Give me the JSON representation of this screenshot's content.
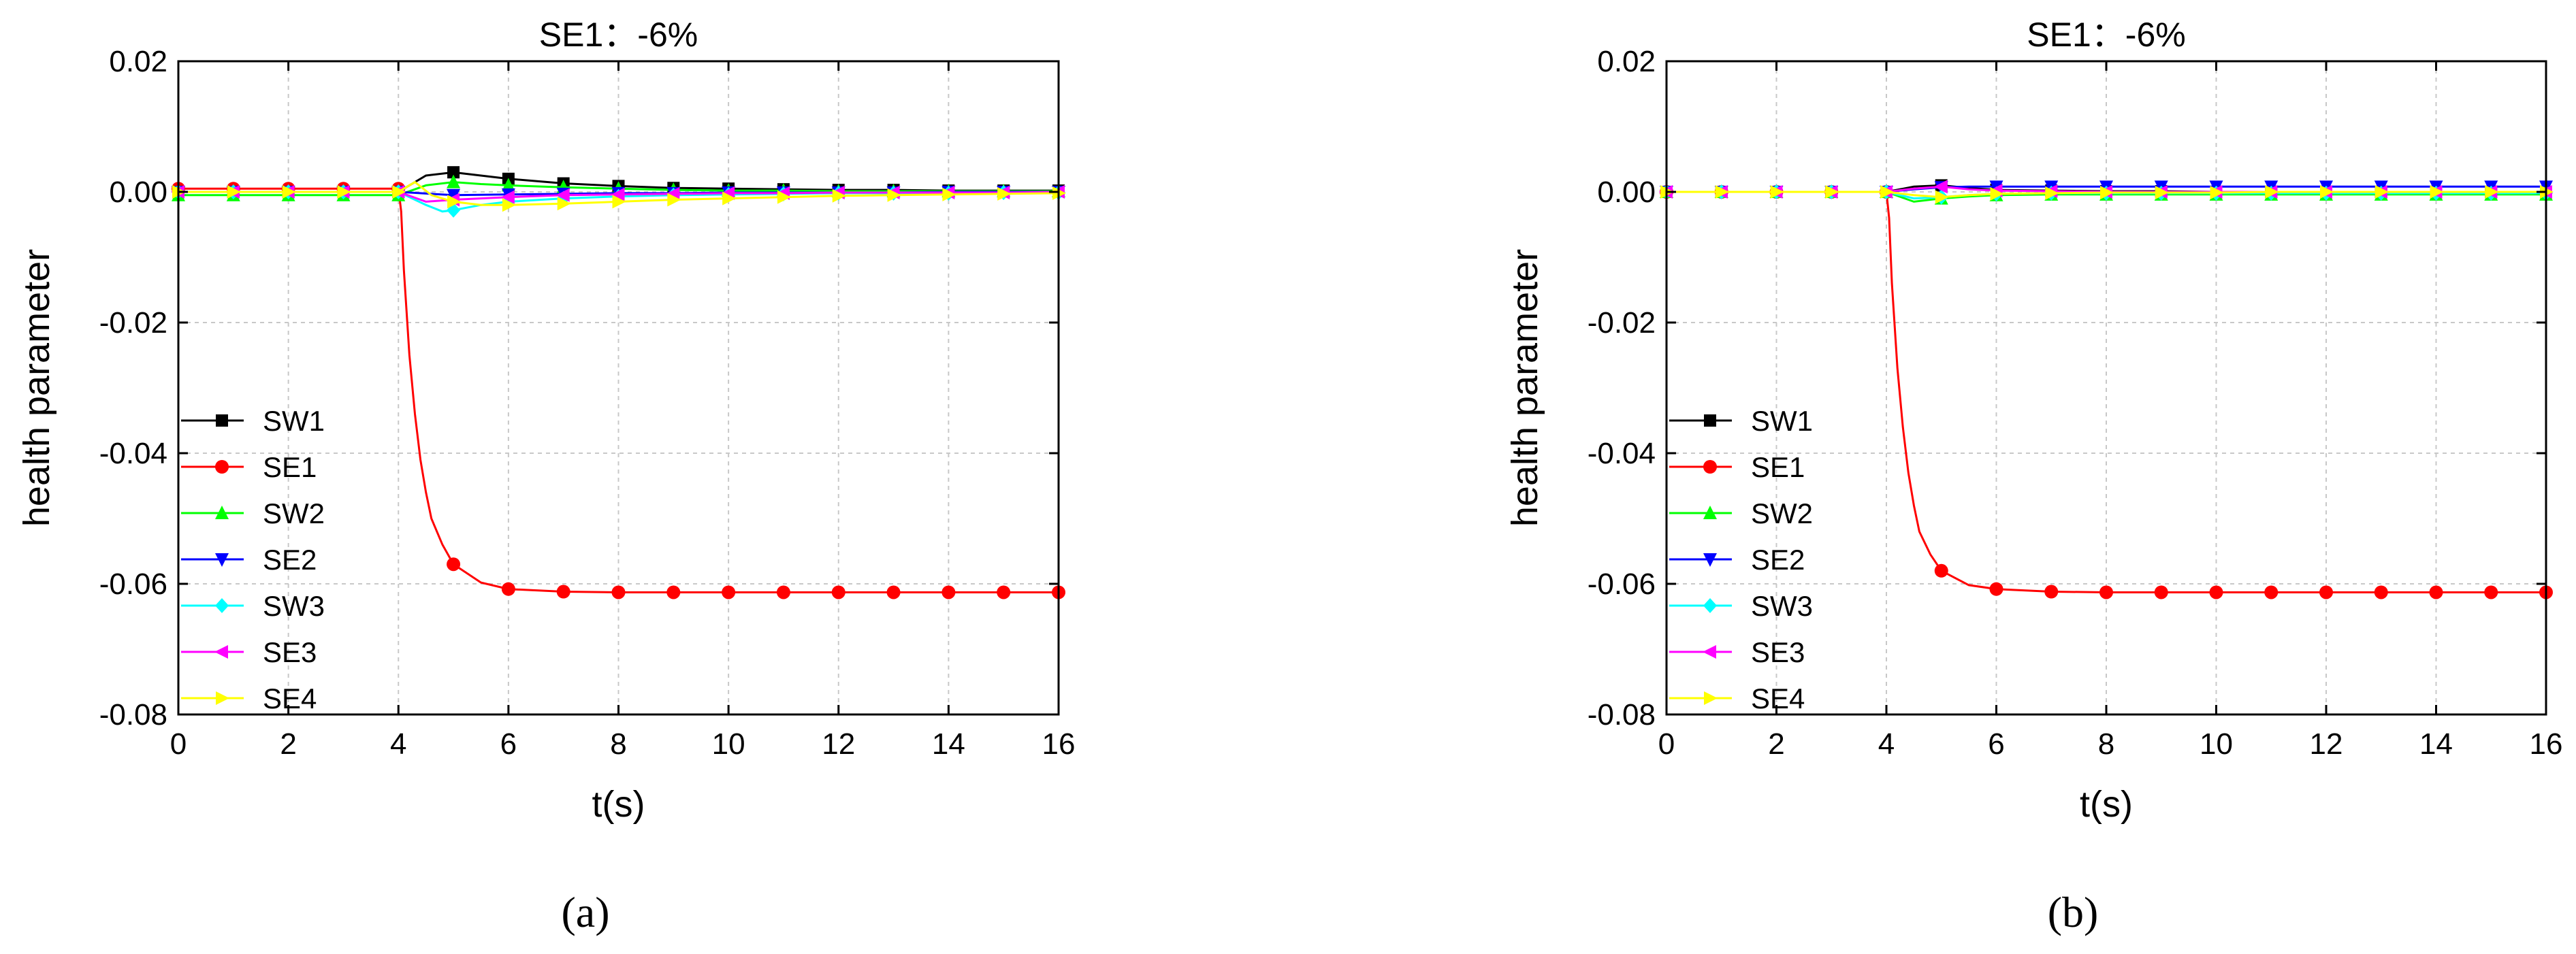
{
  "chart_data": [
    {
      "type": "line",
      "panel_label": "(a)",
      "title": "SE1：-6%",
      "xlabel": "t(s)",
      "ylabel": "health parameter",
      "xlim": [
        0,
        16
      ],
      "ylim": [
        -0.08,
        0.02
      ],
      "xticks": [
        "0",
        "2",
        "4",
        "6",
        "8",
        "10",
        "12",
        "14",
        "16"
      ],
      "yticks": [
        "0.02",
        "0.00",
        "-0.02",
        "-0.04",
        "-0.06",
        "-0.08"
      ],
      "grid": true,
      "legend_position": "bottom-left",
      "marker_x": [
        0,
        1,
        2,
        3,
        4,
        5,
        6,
        7,
        8,
        9,
        10,
        11,
        12,
        13,
        14,
        15,
        16
      ],
      "series": [
        {
          "name": "SW1",
          "color": "#000000",
          "marker": "square",
          "x": [
            0,
            1,
            2,
            3,
            4,
            4.5,
            5,
            5.5,
            6,
            7,
            8,
            9,
            10,
            11,
            12,
            13,
            14,
            15,
            16
          ],
          "y": [
            0.0,
            0.0,
            0.0,
            0.0,
            0.0,
            0.0025,
            0.003,
            0.0025,
            0.002,
            0.0013,
            0.0009,
            0.0006,
            0.0005,
            0.0004,
            0.0003,
            0.0003,
            0.0002,
            0.0002,
            0.0002
          ]
        },
        {
          "name": "SE1",
          "color": "#ff0000",
          "marker": "circle",
          "x": [
            0,
            1,
            2,
            3,
            4,
            4.05,
            4.1,
            4.2,
            4.3,
            4.4,
            4.5,
            4.6,
            4.8,
            5,
            5.5,
            6,
            7,
            8,
            9,
            10,
            11,
            12,
            13,
            14,
            15,
            16
          ],
          "y": [
            0.0005,
            0.0005,
            0.0005,
            0.0005,
            0.0005,
            -0.003,
            -0.012,
            -0.025,
            -0.034,
            -0.041,
            -0.046,
            -0.05,
            -0.054,
            -0.057,
            -0.0598,
            -0.0608,
            -0.0612,
            -0.0613,
            -0.0613,
            -0.0613,
            -0.0613,
            -0.0613,
            -0.0613,
            -0.0613,
            -0.0613,
            -0.0613
          ]
        },
        {
          "name": "SW2",
          "color": "#00ff00",
          "marker": "triangle-up",
          "x": [
            0,
            1,
            2,
            3,
            4,
            4.5,
            5,
            5.5,
            6,
            7,
            8,
            9,
            10,
            11,
            12,
            13,
            14,
            15,
            16
          ],
          "y": [
            -0.0005,
            -0.0005,
            -0.0005,
            -0.0005,
            -0.0005,
            0.001,
            0.0015,
            0.0012,
            0.001,
            0.0007,
            0.0005,
            0.0003,
            0.0002,
            0.0002,
            0.0001,
            0.0001,
            0.0001,
            0.0001,
            0.0001
          ]
        },
        {
          "name": "SE2",
          "color": "#0000ff",
          "marker": "triangle-down",
          "x": [
            0,
            1,
            2,
            3,
            4,
            5,
            6,
            7,
            8,
            9,
            10,
            11,
            12,
            13,
            14,
            15,
            16
          ],
          "y": [
            0.0,
            0.0,
            0.0,
            0.0,
            0.0,
            -0.0005,
            -0.0004,
            -0.0003,
            -0.0002,
            -0.0002,
            -0.0001,
            -0.0001,
            -0.0001,
            -0.0001,
            0.0,
            0.0,
            0.0
          ]
        },
        {
          "name": "SW3",
          "color": "#00ffff",
          "marker": "diamond",
          "x": [
            0,
            1,
            2,
            3,
            4,
            4.5,
            4.8,
            5,
            5.5,
            6,
            7,
            8,
            9,
            10,
            11,
            12,
            13,
            14,
            15,
            16
          ],
          "y": [
            0.0,
            0.0,
            0.0,
            0.0,
            0.0,
            -0.002,
            -0.003,
            -0.0028,
            -0.002,
            -0.0015,
            -0.001,
            -0.0007,
            -0.0005,
            -0.0004,
            -0.0003,
            -0.0002,
            -0.0002,
            -0.0002,
            -0.0001,
            -0.0001
          ]
        },
        {
          "name": "SE3",
          "color": "#ff00ff",
          "marker": "triangle-left",
          "x": [
            0,
            1,
            2,
            3,
            4,
            4.5,
            5,
            5.5,
            6,
            7,
            8,
            9,
            10,
            11,
            12,
            13,
            14,
            15,
            16
          ],
          "y": [
            0.0,
            0.0,
            0.0,
            0.0,
            0.0,
            -0.0015,
            -0.0012,
            -0.001,
            -0.0008,
            -0.0005,
            -0.0004,
            -0.0003,
            -0.0002,
            -0.0002,
            -0.0001,
            -0.0001,
            -0.0001,
            -0.0001,
            0.0
          ]
        },
        {
          "name": "SE4",
          "color": "#ffff00",
          "marker": "triangle-right",
          "x": [
            0,
            1,
            2,
            3,
            4,
            4.3,
            4.6,
            5,
            5.5,
            6,
            7,
            8,
            9,
            10,
            11,
            12,
            13,
            14,
            15,
            16
          ],
          "y": [
            0.0,
            0.0,
            0.0,
            0.0,
            0.0,
            0.0015,
            -0.0005,
            -0.0015,
            -0.002,
            -0.002,
            -0.0018,
            -0.0015,
            -0.0012,
            -0.001,
            -0.0008,
            -0.0006,
            -0.0005,
            -0.0004,
            -0.0003,
            -0.0002
          ]
        }
      ]
    },
    {
      "type": "line",
      "panel_label": "(b)",
      "title": "SE1：-6%",
      "xlabel": "t(s)",
      "ylabel": "health parameter",
      "xlim": [
        0,
        16
      ],
      "ylim": [
        -0.08,
        0.02
      ],
      "xticks": [
        "0",
        "2",
        "4",
        "6",
        "8",
        "10",
        "12",
        "14",
        "16"
      ],
      "yticks": [
        "0.02",
        "0.00",
        "-0.02",
        "-0.04",
        "-0.06",
        "-0.08"
      ],
      "grid": true,
      "legend_position": "bottom-left",
      "marker_x": [
        0,
        1,
        2,
        3,
        4,
        5,
        6,
        7,
        8,
        9,
        10,
        11,
        12,
        13,
        14,
        15,
        16
      ],
      "series": [
        {
          "name": "SW1",
          "color": "#000000",
          "marker": "square",
          "x": [
            0,
            1,
            2,
            3,
            4,
            4.5,
            5,
            5.5,
            6,
            7,
            8,
            9,
            10,
            11,
            12,
            13,
            14,
            15,
            16
          ],
          "y": [
            0.0,
            0.0,
            0.0,
            0.0,
            0.0,
            0.0008,
            0.001,
            0.0006,
            0.0003,
            0.0002,
            0.0001,
            0.0001,
            0.0,
            0.0,
            0.0,
            0.0,
            0.0,
            0.0,
            0.0
          ]
        },
        {
          "name": "SE1",
          "color": "#ff0000",
          "marker": "circle",
          "x": [
            0,
            1,
            2,
            3,
            4,
            4.05,
            4.1,
            4.2,
            4.3,
            4.4,
            4.5,
            4.6,
            4.8,
            5,
            5.5,
            6,
            7,
            8,
            9,
            10,
            11,
            12,
            13,
            14,
            15,
            16
          ],
          "y": [
            0.0,
            0.0,
            0.0,
            0.0,
            0.0,
            -0.004,
            -0.014,
            -0.027,
            -0.036,
            -0.043,
            -0.048,
            -0.052,
            -0.0555,
            -0.058,
            -0.0602,
            -0.0608,
            -0.0612,
            -0.0613,
            -0.0613,
            -0.0613,
            -0.0613,
            -0.0613,
            -0.0613,
            -0.0613,
            -0.0613,
            -0.0613
          ]
        },
        {
          "name": "SW2",
          "color": "#00ff00",
          "marker": "triangle-up",
          "x": [
            0,
            1,
            2,
            3,
            4,
            4.5,
            5,
            5.5,
            6,
            7,
            8,
            9,
            10,
            11,
            12,
            13,
            14,
            15,
            16
          ],
          "y": [
            0.0,
            0.0,
            0.0,
            0.0,
            0.0,
            -0.0015,
            -0.001,
            -0.0007,
            -0.0005,
            -0.0004,
            -0.0004,
            -0.0004,
            -0.0004,
            -0.0004,
            -0.0004,
            -0.0004,
            -0.0004,
            -0.0004,
            -0.0004
          ]
        },
        {
          "name": "SE2",
          "color": "#0000ff",
          "marker": "triangle-down",
          "x": [
            0,
            1,
            2,
            3,
            4,
            4.5,
            5,
            5.5,
            6,
            7,
            8,
            9,
            10,
            11,
            12,
            13,
            14,
            15,
            16
          ],
          "y": [
            0.0,
            0.0,
            0.0,
            0.0,
            0.0,
            0.0004,
            0.0007,
            0.0008,
            0.0008,
            0.0008,
            0.0008,
            0.0008,
            0.0008,
            0.0008,
            0.0008,
            0.0008,
            0.0008,
            0.0008,
            0.0008
          ]
        },
        {
          "name": "SW3",
          "color": "#00ffff",
          "marker": "diamond",
          "x": [
            0,
            1,
            2,
            3,
            4,
            4.5,
            5,
            5.5,
            6,
            7,
            8,
            9,
            10,
            11,
            12,
            13,
            14,
            15,
            16
          ],
          "y": [
            0.0,
            0.0,
            0.0,
            0.0,
            0.0,
            -0.001,
            -0.0008,
            -0.0005,
            -0.0003,
            -0.0002,
            -0.0002,
            -0.0002,
            -0.0002,
            -0.0002,
            -0.0002,
            -0.0002,
            -0.0002,
            -0.0002,
            -0.0002
          ]
        },
        {
          "name": "SE3",
          "color": "#ff00ff",
          "marker": "triangle-left",
          "x": [
            0,
            1,
            2,
            3,
            4,
            4.5,
            5,
            5.5,
            6,
            7,
            8,
            9,
            10,
            11,
            12,
            13,
            14,
            15,
            16
          ],
          "y": [
            0.0,
            0.0,
            0.0,
            0.0,
            0.0,
            0.0005,
            0.0008,
            0.0004,
            0.0002,
            0.0001,
            0.0,
            0.0,
            0.0,
            0.0,
            0.0,
            0.0,
            0.0,
            0.0,
            0.0
          ]
        },
        {
          "name": "SE4",
          "color": "#ffff00",
          "marker": "triangle-right",
          "x": [
            0,
            1,
            2,
            3,
            4,
            4.5,
            5,
            5.5,
            6,
            7,
            8,
            9,
            10,
            11,
            12,
            13,
            14,
            15,
            16
          ],
          "y": [
            0.0,
            0.0,
            0.0,
            0.0,
            0.0,
            -0.0005,
            -0.0008,
            -0.0005,
            -0.0003,
            -0.0002,
            -0.0001,
            -0.0001,
            -0.0001,
            0.0,
            0.0,
            0.0,
            0.0,
            0.0,
            0.0
          ]
        }
      ]
    }
  ]
}
